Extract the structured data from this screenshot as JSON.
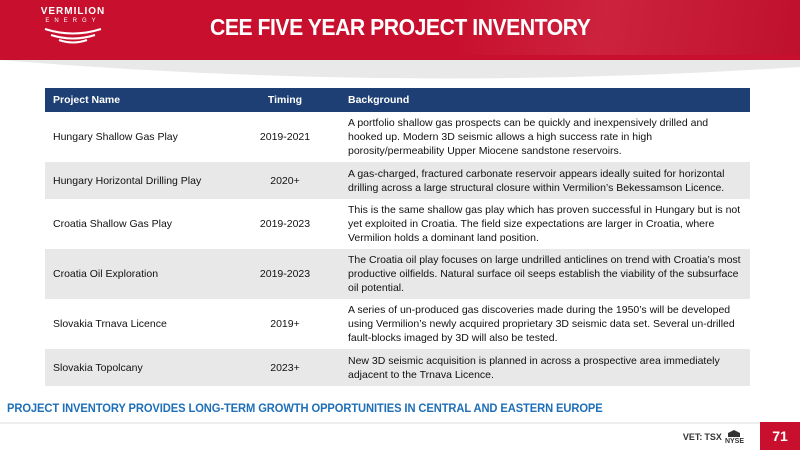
{
  "header": {
    "logo_name": "VERMILION",
    "logo_sub": "ENERGY",
    "title": "CEE FIVE YEAR PROJECT INVENTORY"
  },
  "table": {
    "columns": [
      "Project Name",
      "Timing",
      "Background"
    ],
    "rows": [
      {
        "name": "Hungary Shallow Gas Play",
        "timing": "2019-2021",
        "background": "A portfolio shallow gas prospects can be quickly and inexpensively drilled and hooked up. Modern 3D seismic allows a high success rate in high porosity/permeability Upper Miocene sandstone reservoirs."
      },
      {
        "name": "Hungary Horizontal Drilling Play",
        "timing": "2020+",
        "background": "A gas-charged, fractured carbonate reservoir appears ideally suited for horizontal drilling across a large structural closure within Vermilion’s Bekessamson Licence."
      },
      {
        "name": "Croatia Shallow Gas Play",
        "timing": "2019-2023",
        "background": "This is the same shallow gas play which has proven successful in Hungary but is not yet exploited in Croatia.  The field size expectations are larger in Croatia, where Vermilion holds a dominant land position."
      },
      {
        "name": "Croatia Oil Exploration",
        "timing": "2019-2023",
        "background": "The Croatia oil play focuses on large undrilled anticlines on trend with Croatia’s most productive oilfields. Natural surface oil seeps establish the viability of the subsurface oil potential."
      },
      {
        "name": "Slovakia Trnava Licence",
        "timing": "2019+",
        "background": "A series of un-produced gas discoveries made during the 1950’s will be developed using Vermilion’s newly acquired proprietary 3D seismic data set. Several un-drilled fault-blocks imaged by 3D will also be tested."
      },
      {
        "name": "Slovakia Topolcany",
        "timing": "2023+",
        "background": "New 3D seismic acquisition is planned in across a prospective area immediately adjacent to the Trnava Licence."
      }
    ]
  },
  "footer": {
    "tagline": "PROJECT INVENTORY PROVIDES LONG-TERM GROWTH OPPORTUNITIES IN CENTRAL AND EASTERN EUROPE",
    "ticker_vet": "VET:",
    "ticker_tsx": "TSX",
    "ticker_nyse": "NYSE",
    "page_number": "71"
  },
  "colors": {
    "brand_red": "#c8102e",
    "header_navy": "#1e3f73",
    "tagline_blue": "#1e6fb8",
    "row_alt_gray": "#e8e8e8"
  }
}
